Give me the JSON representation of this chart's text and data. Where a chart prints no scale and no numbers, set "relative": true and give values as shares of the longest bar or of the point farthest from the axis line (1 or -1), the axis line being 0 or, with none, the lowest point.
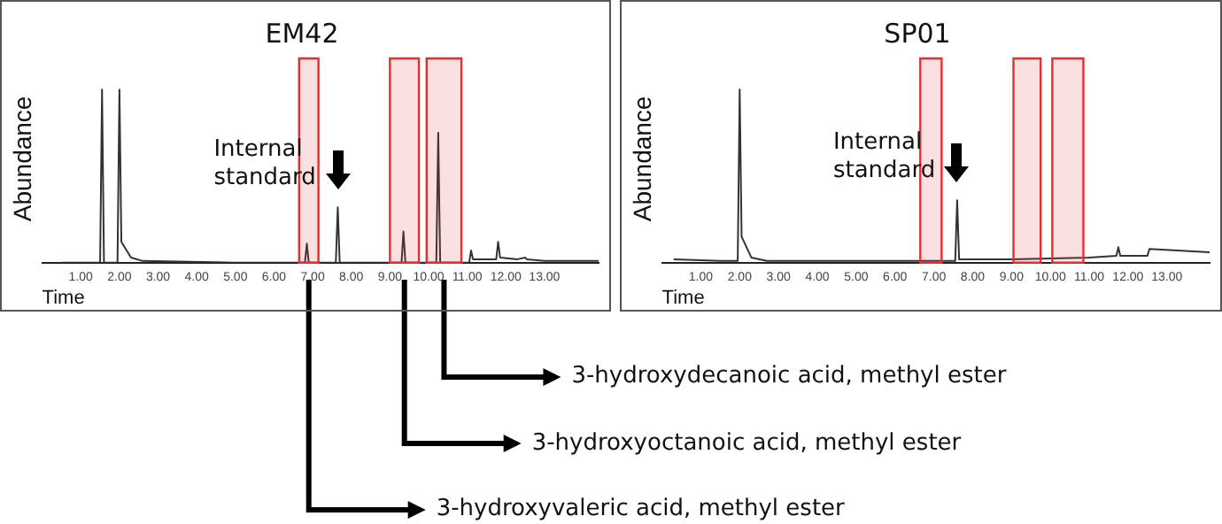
{
  "chart_data": [
    {
      "type": "line",
      "title": "EM42",
      "xlabel": "Time",
      "ylabel": "Abundance",
      "relative": true,
      "xlim": [
        0,
        14.4
      ],
      "xticks": [
        {
          "value": 1,
          "label": "1.00"
        },
        {
          "value": 2,
          "label": "2.00"
        },
        {
          "value": 3,
          "label": "3.00"
        },
        {
          "value": 4,
          "label": "4.00"
        },
        {
          "value": 5,
          "label": "5.00"
        },
        {
          "value": 6,
          "label": "6.00"
        },
        {
          "value": 7,
          "label": "7.00"
        },
        {
          "value": 8,
          "label": "8.00"
        },
        {
          "value": 9,
          "label": "9.00"
        },
        {
          "value": 10,
          "label": "10.00"
        },
        {
          "value": 11,
          "label": "11.00"
        },
        {
          "value": 12,
          "label": "12.00"
        },
        {
          "value": 13,
          "label": "13.00"
        }
      ],
      "series": [
        {
          "color": "#333333",
          "x": [
            0.5,
            1.5,
            1.55,
            1.6,
            1.95,
            2.0,
            2.05,
            2.3,
            2.6,
            5.0,
            6.8,
            6.85,
            6.9,
            7.6,
            7.65,
            7.7,
            9.3,
            9.35,
            9.4,
            10.2,
            10.25,
            10.3,
            11.05,
            11.1,
            11.15,
            11.3,
            11.75,
            11.8,
            11.85,
            12.3,
            12.5,
            12.55,
            13,
            14.4
          ],
          "values": [
            0,
            0,
            1,
            0,
            0,
            1,
            0.12,
            0.03,
            0.01,
            0,
            0,
            0.11,
            0,
            0,
            0.32,
            0,
            0,
            0.18,
            0,
            0,
            0.75,
            0,
            0,
            0.07,
            0.02,
            0.02,
            0.02,
            0.12,
            0.03,
            0.02,
            0.03,
            0.02,
            0.01,
            0.01
          ]
        }
      ],
      "bands": [
        {
          "axis": "x",
          "from": 6.65,
          "to": 7.15,
          "color": "#e03030"
        },
        {
          "axis": "x",
          "from": 9.0,
          "to": 9.75,
          "color": "#e03030"
        },
        {
          "axis": "x",
          "from": 9.95,
          "to": 10.85,
          "color": "#e03030"
        }
      ],
      "annotations": [
        {
          "text": "Internal standard",
          "x": 7.65,
          "y": 0.32
        },
        "3-hydroxydecanoic acid, methyl ester",
        "3-hydroxyoctanoic acid, methyl ester",
        "3-hydroxyvaleric acid, methyl ester"
      ]
    },
    {
      "type": "line",
      "title": "SP01",
      "xlabel": "Time",
      "ylabel": "Abundance",
      "relative": true,
      "xlim": [
        0,
        14.1
      ],
      "xticks": [
        {
          "value": 1,
          "label": "1.00"
        },
        {
          "value": 2,
          "label": "2.00"
        },
        {
          "value": 3,
          "label": "3.00"
        },
        {
          "value": 4,
          "label": "4.00"
        },
        {
          "value": 5,
          "label": "5.00"
        },
        {
          "value": 6,
          "label": "6.00"
        },
        {
          "value": 7,
          "label": "7.00"
        },
        {
          "value": 8,
          "label": "8.00"
        },
        {
          "value": 9,
          "label": "9.00"
        },
        {
          "value": 10,
          "label": "10.00"
        },
        {
          "value": 11,
          "label": "11.00"
        },
        {
          "value": 12,
          "label": "12.00"
        },
        {
          "value": 13,
          "label": "13.00"
        }
      ],
      "series": [
        {
          "color": "#333333",
          "x": [
            0.3,
            1.5,
            1.95,
            2.0,
            2.05,
            2.3,
            2.7,
            7.0,
            7.55,
            7.6,
            7.65,
            9.0,
            11.0,
            11.7,
            11.75,
            11.8,
            12.0,
            12.5,
            12.55,
            14.1
          ],
          "values": [
            0.02,
            0.01,
            0.01,
            1,
            0.15,
            0.03,
            0.01,
            0.01,
            0.01,
            0.36,
            0.02,
            0.02,
            0.03,
            0.04,
            0.09,
            0.04,
            0.04,
            0.04,
            0.08,
            0.06
          ]
        }
      ],
      "bands": [
        {
          "axis": "x",
          "from": 6.65,
          "to": 7.2,
          "color": "#e03030"
        },
        {
          "axis": "x",
          "from": 9.05,
          "to": 9.75,
          "color": "#e03030"
        },
        {
          "axis": "x",
          "from": 10.05,
          "to": 10.85,
          "color": "#e03030"
        }
      ],
      "annotations": [
        {
          "text": "Internal standard",
          "x": 7.6,
          "y": 0.36
        }
      ]
    }
  ]
}
